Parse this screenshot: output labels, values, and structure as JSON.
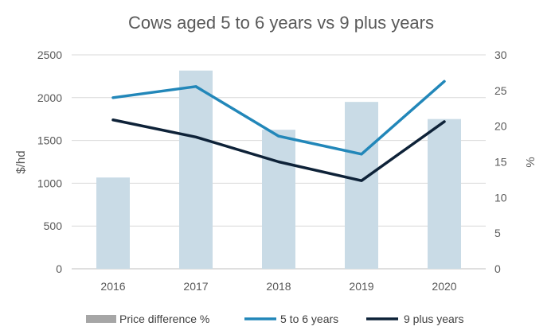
{
  "chart_data": {
    "type": "bar",
    "title": "Cows aged 5 to 6 years vs 9 plus years",
    "categories": [
      "2016",
      "2017",
      "2018",
      "2019",
      "2020"
    ],
    "ylabel": "$/hd",
    "y2label": "%",
    "ylim": [
      0,
      2500
    ],
    "y2lim": [
      0,
      30
    ],
    "yticks": [
      "0",
      "500",
      "1000",
      "1500",
      "2000",
      "2500"
    ],
    "y2ticks": [
      "0",
      "5",
      "10",
      "15",
      "20",
      "25",
      "30"
    ],
    "grid": true,
    "legend_position": "bottom",
    "series": [
      {
        "name": "Price difference %",
        "kind": "bar",
        "axis": "right",
        "color": "#c9dbe6",
        "legend_color": "#a6a6a6",
        "values": [
          12.8,
          27.8,
          19.5,
          23.4,
          21.0
        ]
      },
      {
        "name": "5 to 6 years",
        "kind": "line",
        "axis": "left",
        "color": "#2287b9",
        "values": [
          2000,
          2130,
          1550,
          1340,
          2190
        ]
      },
      {
        "name": "9 plus years",
        "kind": "line",
        "axis": "left",
        "color": "#0e2238",
        "values": [
          1740,
          1540,
          1250,
          1030,
          1720
        ]
      }
    ]
  }
}
